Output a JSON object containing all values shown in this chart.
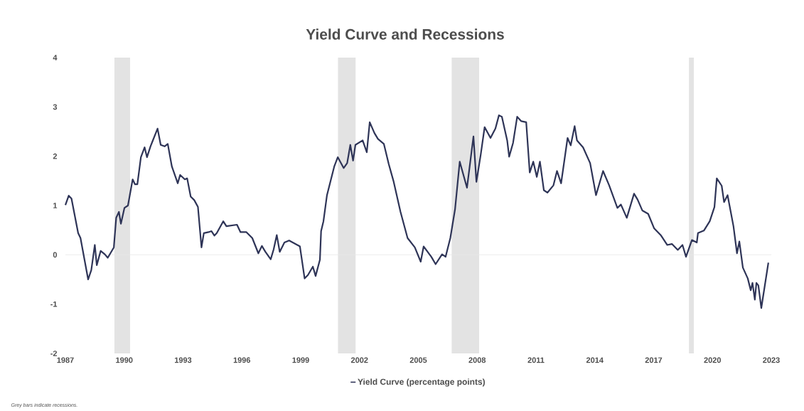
{
  "chart_data": {
    "type": "line",
    "title": "Yield Curve and Recessions",
    "annotations": [
      "Grey bars indicate recessions."
    ],
    "xlim": [
      1987,
      2023
    ],
    "xticks": [
      1987,
      1990,
      1993,
      1996,
      1999,
      2002,
      2005,
      2008,
      2011,
      2014,
      2017,
      2020,
      2023
    ],
    "ylim": [
      -2,
      4
    ],
    "yticks": [
      -2,
      -1,
      0,
      1,
      2,
      3,
      4
    ],
    "grid": false,
    "legend": "bottom",
    "marker": "none",
    "line_style": "solid",
    "ref_lines": [
      {
        "axis": "y",
        "value": 0,
        "color": "#e6e6e6"
      }
    ],
    "bands": [
      {
        "axis": "x",
        "from": 1989.5,
        "to": 1990.3,
        "color": "#e3e3e3"
      },
      {
        "axis": "x",
        "from": 2000.9,
        "to": 2001.8,
        "color": "#e3e3e3"
      },
      {
        "axis": "x",
        "from": 2006.7,
        "to": 2008.1,
        "color": "#e3e3e3"
      },
      {
        "axis": "x",
        "from": 2018.8,
        "to": 2019.05,
        "color": "#e3e3e3"
      }
    ],
    "series": [
      {
        "name": "Yield Curve (percentage points)",
        "color": "#2e3457",
        "x": [
          1987.0,
          1987.17,
          1987.31,
          1987.65,
          1987.77,
          1988.16,
          1988.32,
          1988.5,
          1988.6,
          1988.8,
          1989.01,
          1989.16,
          1989.47,
          1989.59,
          1989.73,
          1989.83,
          1990.01,
          1990.19,
          1990.43,
          1990.55,
          1990.67,
          1990.85,
          1991.04,
          1991.16,
          1991.34,
          1991.46,
          1991.7,
          1991.86,
          1992.06,
          1992.22,
          1992.43,
          1992.73,
          1992.85,
          1993.09,
          1993.21,
          1993.39,
          1993.57,
          1993.76,
          1993.94,
          1994.06,
          1994.3,
          1994.45,
          1994.6,
          1994.72,
          1995.05,
          1995.21,
          1995.75,
          1995.93,
          1996.23,
          1996.53,
          1996.84,
          1997.02,
          1997.2,
          1997.47,
          1997.62,
          1997.78,
          1997.93,
          1998.17,
          1998.41,
          1998.96,
          1999.2,
          1999.37,
          1999.62,
          1999.76,
          1999.98,
          2000.04,
          2000.16,
          2000.34,
          2000.71,
          2000.89,
          2001.19,
          2001.37,
          2001.53,
          2001.67,
          2001.79,
          2002.16,
          2002.37,
          2002.52,
          2002.76,
          2002.94,
          2003.24,
          2003.49,
          2003.73,
          2004.09,
          2004.45,
          2004.82,
          2005.12,
          2005.27,
          2005.66,
          2005.88,
          2006.21,
          2006.39,
          2006.63,
          2006.87,
          2007.11,
          2007.48,
          2007.81,
          2007.96,
          2008.18,
          2008.38,
          2008.68,
          2008.93,
          2009.11,
          2009.26,
          2009.53,
          2009.63,
          2009.83,
          2010.04,
          2010.25,
          2010.5,
          2010.68,
          2010.86,
          2011.04,
          2011.2,
          2011.4,
          2011.58,
          2011.89,
          2012.07,
          2012.28,
          2012.61,
          2012.77,
          2012.97,
          2013.09,
          2013.4,
          2013.76,
          2014.06,
          2014.42,
          2014.73,
          2015.15,
          2015.33,
          2015.63,
          2016.0,
          2016.18,
          2016.42,
          2016.72,
          2017.02,
          2017.38,
          2017.69,
          2017.93,
          2018.23,
          2018.47,
          2018.65,
          2018.95,
          2019.2,
          2019.26,
          2019.56,
          2019.86,
          2020.1,
          2020.22,
          2020.47,
          2020.59,
          2020.77,
          2021.07,
          2021.25,
          2021.37,
          2021.55,
          2021.8,
          2021.95,
          2022.04,
          2022.16,
          2022.24,
          2022.34,
          2022.49,
          2022.85
        ],
        "values": [
          1.01,
          1.2,
          1.14,
          0.44,
          0.34,
          -0.5,
          -0.31,
          0.2,
          -0.21,
          0.08,
          0.01,
          -0.06,
          0.15,
          0.75,
          0.87,
          0.63,
          0.95,
          1.0,
          1.53,
          1.43,
          1.43,
          1.98,
          2.18,
          1.98,
          2.2,
          2.32,
          2.56,
          2.23,
          2.2,
          2.25,
          1.79,
          1.45,
          1.62,
          1.53,
          1.55,
          1.18,
          1.11,
          0.97,
          0.15,
          0.44,
          0.46,
          0.48,
          0.39,
          0.44,
          0.68,
          0.58,
          0.61,
          0.46,
          0.46,
          0.34,
          0.03,
          0.18,
          0.06,
          -0.09,
          0.11,
          0.4,
          0.06,
          0.25,
          0.29,
          0.17,
          -0.48,
          -0.41,
          -0.24,
          -0.43,
          -0.1,
          0.48,
          0.68,
          1.21,
          1.79,
          1.98,
          1.76,
          1.86,
          2.23,
          1.91,
          2.23,
          2.32,
          2.08,
          2.69,
          2.47,
          2.35,
          2.25,
          1.84,
          1.5,
          0.87,
          0.34,
          0.15,
          -0.14,
          0.17,
          -0.04,
          -0.19,
          0.01,
          -0.04,
          0.34,
          0.92,
          1.89,
          1.36,
          2.4,
          1.48,
          2.03,
          2.59,
          2.37,
          2.56,
          2.83,
          2.8,
          2.32,
          1.99,
          2.27,
          2.8,
          2.71,
          2.69,
          1.67,
          1.89,
          1.58,
          1.89,
          1.31,
          1.26,
          1.41,
          1.7,
          1.45,
          2.37,
          2.22,
          2.61,
          2.32,
          2.18,
          1.86,
          1.21,
          1.7,
          1.41,
          0.95,
          1.02,
          0.75,
          1.24,
          1.12,
          0.9,
          0.83,
          0.54,
          0.39,
          0.2,
          0.22,
          0.1,
          0.2,
          -0.04,
          0.3,
          0.25,
          0.44,
          0.49,
          0.68,
          0.97,
          1.55,
          1.4,
          1.07,
          1.21,
          0.58,
          0.03,
          0.27,
          -0.26,
          -0.48,
          -0.72,
          -0.57,
          -0.91,
          -0.57,
          -0.62,
          -1.08,
          -0.16
        ]
      }
    ]
  }
}
